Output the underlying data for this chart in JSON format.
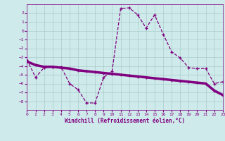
{
  "hours": [
    0,
    1,
    2,
    3,
    4,
    5,
    6,
    7,
    8,
    9,
    10,
    11,
    12,
    13,
    14,
    15,
    16,
    17,
    18,
    19,
    20,
    21,
    22,
    23
  ],
  "curve1": [
    -3.3,
    -5.3,
    -4.2,
    -4.1,
    -4.1,
    -6.0,
    -6.7,
    -8.2,
    -8.2,
    -5.3,
    -4.6,
    2.5,
    2.6,
    1.8,
    0.3,
    1.8,
    -0.4,
    -2.4,
    -3.1,
    -4.2,
    -4.3,
    -4.3,
    -6.0,
    -5.8
  ],
  "curve2": [
    -3.5,
    -3.9,
    -4.1,
    -4.1,
    -4.2,
    -4.3,
    -4.5,
    -4.6,
    -4.7,
    -4.8,
    -4.9,
    -5.0,
    -5.1,
    -5.2,
    -5.3,
    -5.4,
    -5.5,
    -5.6,
    -5.7,
    -5.8,
    -5.9,
    -6.0,
    -6.8,
    -7.3
  ],
  "line_color": "#800080",
  "marker": "+",
  "bg_color": "#ceeaea",
  "grid_color": "#aacccc",
  "xlabel": "Windchill (Refroidissement éolien,°C)",
  "xlim": [
    0,
    23
  ],
  "ylim": [
    -9,
    3
  ],
  "yticks": [
    -8,
    -7,
    -6,
    -5,
    -4,
    -3,
    -2,
    -1,
    0,
    1,
    2
  ],
  "xticks": [
    0,
    1,
    2,
    3,
    4,
    5,
    6,
    7,
    8,
    9,
    10,
    11,
    12,
    13,
    14,
    15,
    16,
    17,
    18,
    19,
    20,
    21,
    22,
    23
  ],
  "curve1_linestyle": "--",
  "curve2_linestyle": "-",
  "curve2_linewidth": 2.5,
  "curve1_linewidth": 0.9
}
